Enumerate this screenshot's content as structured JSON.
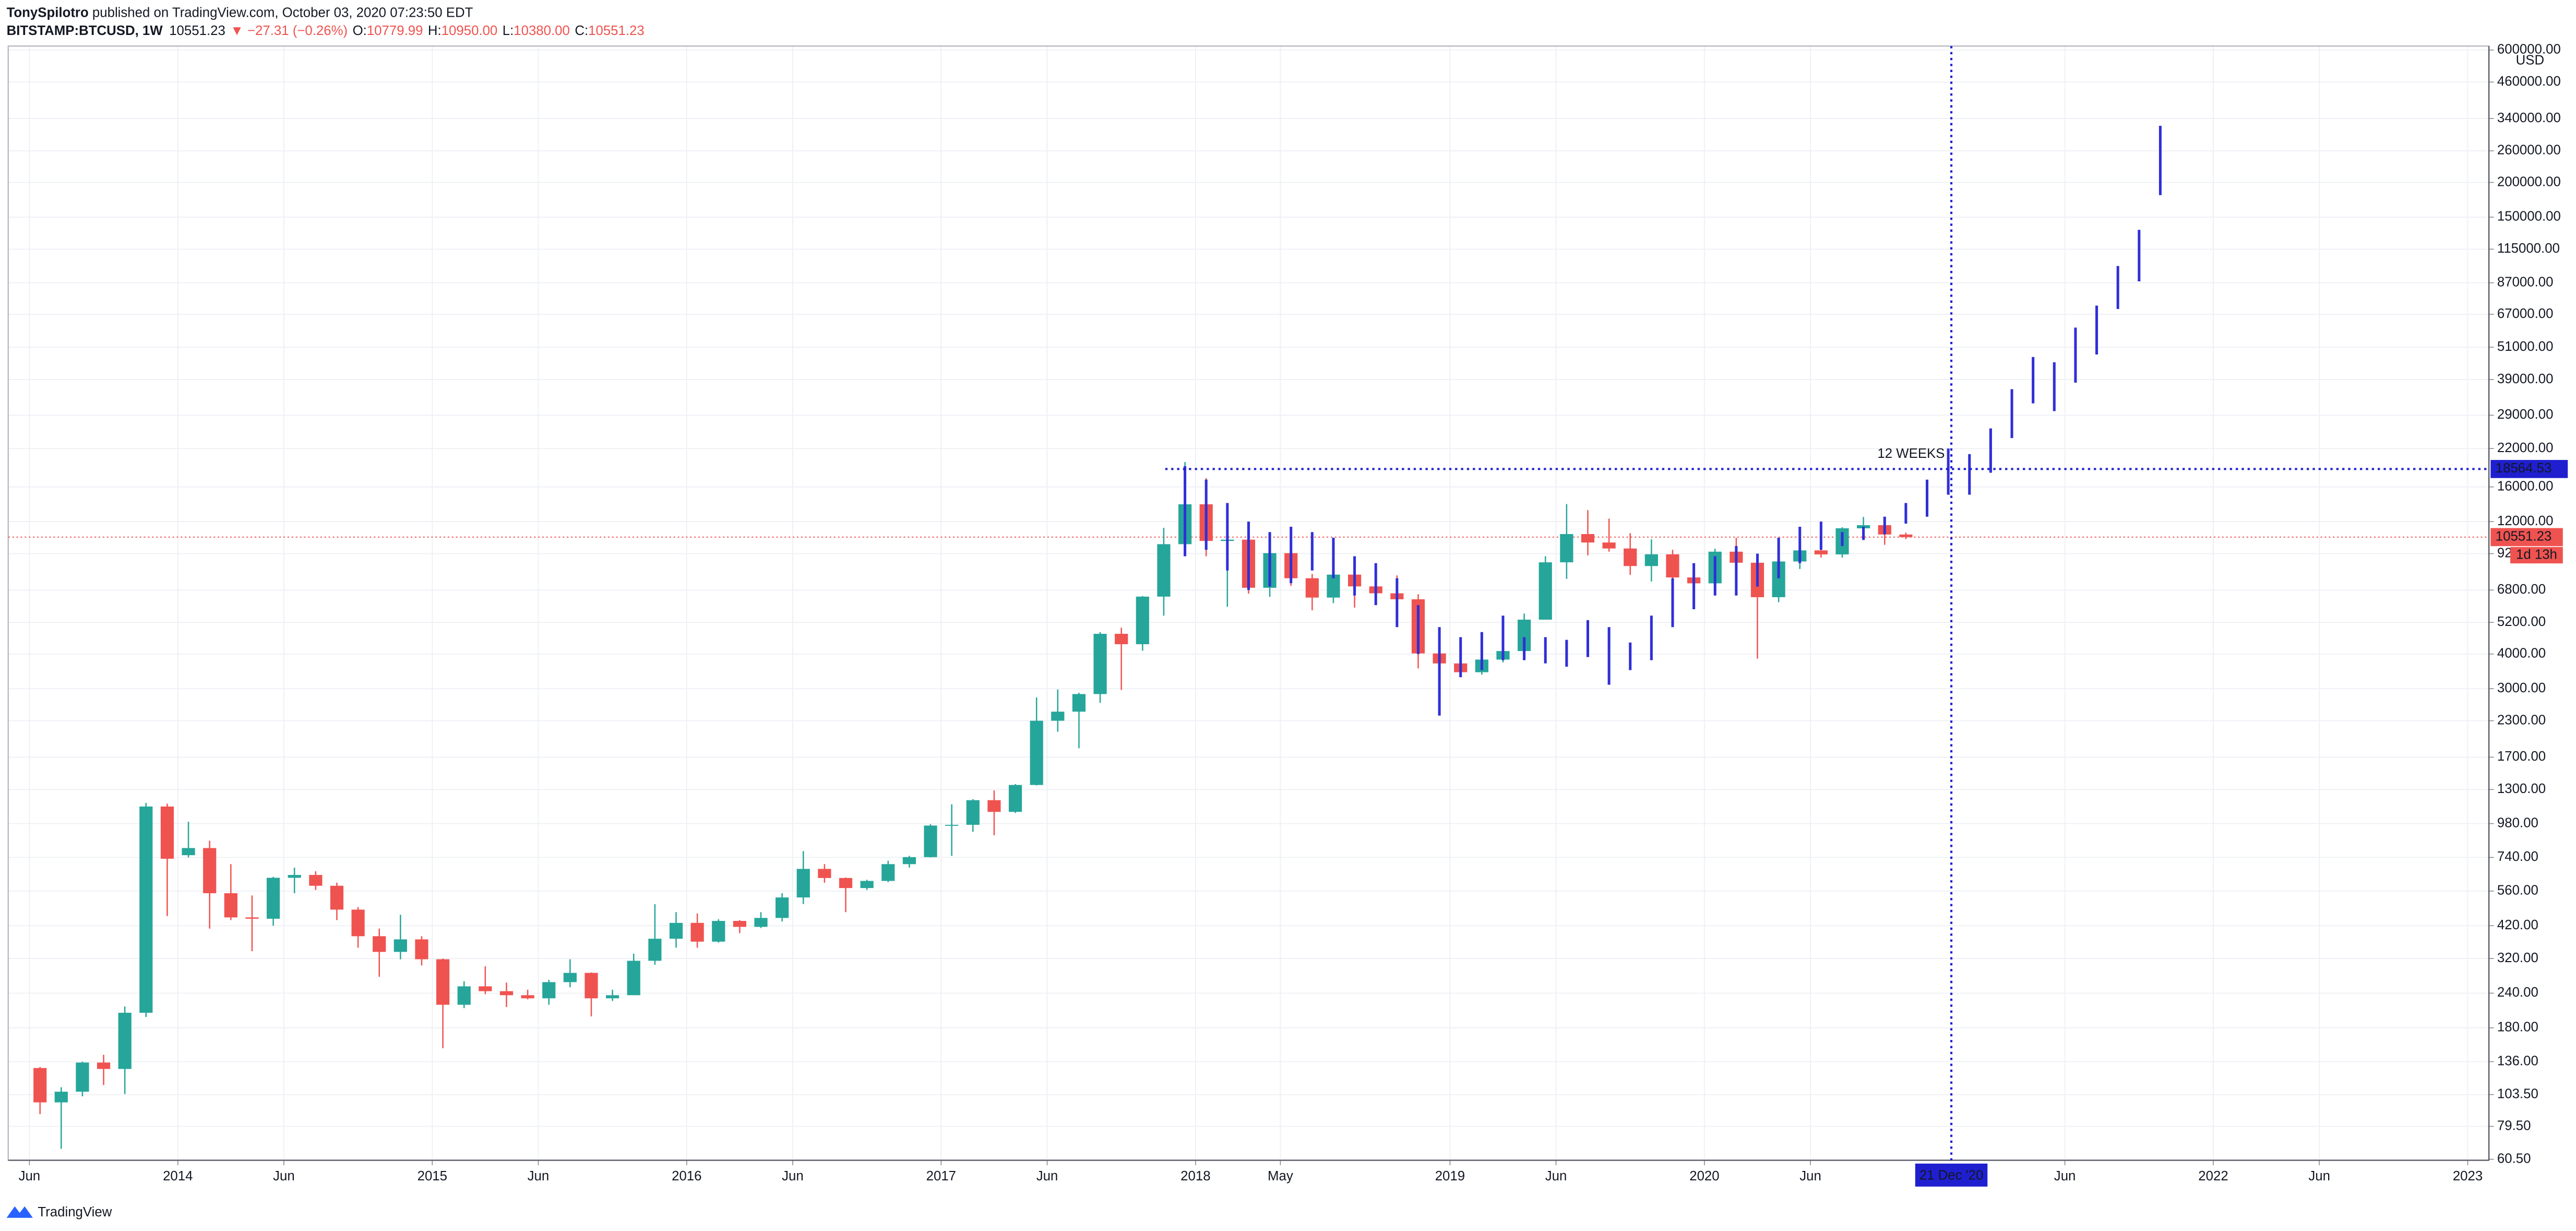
{
  "header": {
    "author": "TonySpilotro",
    "published": "published on TradingView.com, October 03, 2020 07:23:50 EDT",
    "symbol": "BITSTAMP:BTCUSD, 1W",
    "last": "10551.23",
    "change": "▼ −27.31 (−0.26%)",
    "ohlc": [
      {
        "key": "O:",
        "value": "10779.99"
      },
      {
        "key": "H:",
        "value": "10950.00"
      },
      {
        "key": "L:",
        "value": "10380.00"
      },
      {
        "key": "C:",
        "value": "10551.23"
      }
    ]
  },
  "footer": {
    "brand": "TradingView"
  },
  "chart_data": {
    "type": "candlestick",
    "log_scale": true,
    "grid": true,
    "up_color": "#26a69a",
    "down_color": "#ef5350",
    "axis_unit": "USD",
    "x": [
      "2013-06",
      "2013-07",
      "2013-08",
      "2013-09",
      "2013-10",
      "2013-11",
      "2013-12",
      "2014-01",
      "2014-02",
      "2014-03",
      "2014-04",
      "2014-05",
      "2014-06",
      "2014-07",
      "2014-08",
      "2014-09",
      "2014-10",
      "2014-11",
      "2014-12",
      "2015-01",
      "2015-02",
      "2015-03",
      "2015-04",
      "2015-05",
      "2015-06",
      "2015-07",
      "2015-08",
      "2015-09",
      "2015-10",
      "2015-11",
      "2015-12",
      "2016-01",
      "2016-02",
      "2016-03",
      "2016-04",
      "2016-05",
      "2016-06",
      "2016-07",
      "2016-08",
      "2016-09",
      "2016-10",
      "2016-11",
      "2016-12",
      "2017-01",
      "2017-02",
      "2017-03",
      "2017-04",
      "2017-05",
      "2017-06",
      "2017-07",
      "2017-08",
      "2017-09",
      "2017-10",
      "2017-11",
      "2017-12",
      "2018-01",
      "2018-02",
      "2018-03",
      "2018-04",
      "2018-05",
      "2018-06",
      "2018-07",
      "2018-08",
      "2018-09",
      "2018-10",
      "2018-11",
      "2018-12",
      "2019-01",
      "2019-02",
      "2019-03",
      "2019-04",
      "2019-05",
      "2019-06",
      "2019-07",
      "2019-08",
      "2019-09",
      "2019-10",
      "2019-11",
      "2019-12",
      "2020-01",
      "2020-02",
      "2020-03",
      "2020-04",
      "2020-05",
      "2020-06",
      "2020-07",
      "2020-08",
      "2020-09",
      "2020-10"
    ],
    "open": [
      129,
      97,
      106,
      135,
      128,
      204,
      1129,
      754,
      800,
      550,
      450,
      445,
      625,
      640,
      585,
      480,
      385,
      338,
      375,
      318,
      218,
      254,
      244,
      236,
      230,
      263,
      284,
      230,
      236,
      314,
      377,
      430,
      368,
      437,
      416,
      448,
      531,
      673,
      624,
      574,
      609,
      700,
      742,
      964,
      970,
      1190,
      1080,
      1350,
      2300,
      2480,
      2870,
      4730,
      4340,
      6440,
      9950,
      13850,
      10220,
      10330,
      6930,
      9240,
      7500,
      6390,
      7730,
      7010,
      6620,
      6300,
      4020,
      3700,
      3440,
      3820,
      4100,
      5320,
      8560,
      10820,
      10090,
      9600,
      8300,
      9150,
      7550,
      7190,
      9350,
      8530,
      6410,
      8620,
      9450,
      9140,
      11350,
      11650,
      10780
    ],
    "high": [
      130,
      110,
      136,
      144,
      215,
      1163,
      1156,
      995,
      850,
      700,
      540,
      630,
      680,
      660,
      600,
      490,
      410,
      460,
      385,
      320,
      265,
      300,
      262,
      247,
      268,
      318,
      285,
      247,
      333,
      502,
      470,
      465,
      443,
      440,
      470,
      550,
      780,
      700,
      627,
      615,
      720,
      750,
      975,
      1150,
      1200,
      1290,
      1360,
      2790,
      2980,
      2900,
      4800,
      4980,
      6470,
      11400,
      19666,
      17200,
      11780,
      11700,
      9760,
      9990,
      7770,
      8500,
      7750,
      7410,
      7680,
      6570,
      4310,
      4100,
      4200,
      4130,
      5600,
      9000,
      13880,
      13200,
      12300,
      10900,
      10350,
      9500,
      7750,
      9580,
      10500,
      9190,
      9460,
      10080,
      10380,
      11450,
      12470,
      12090,
      10950
    ],
    "low": [
      88,
      66,
      102,
      112,
      104,
      197,
      455,
      740,
      410,
      440,
      340,
      420,
      550,
      565,
      440,
      350,
      275,
      318,
      302,
      152,
      212,
      238,
      214,
      228,
      218,
      252,
      198,
      225,
      236,
      304,
      350,
      350,
      365,
      395,
      412,
      435,
      503,
      600,
      470,
      565,
      603,
      680,
      740,
      750,
      915,
      890,
      1070,
      1345,
      2100,
      1830,
      2670,
      2970,
      4110,
      5500,
      9400,
      9000,
      5920,
      6600,
      6430,
      7050,
      5750,
      6100,
      5880,
      6100,
      6200,
      3550,
      3120,
      3350,
      3370,
      3730,
      4050,
      5330,
      7460,
      9070,
      9350,
      7710,
      7300,
      6530,
      6430,
      6880,
      8450,
      3850,
      6150,
      8100,
      8900,
      8900,
      10520,
      9900,
      10380
    ],
    "close": [
      97,
      106,
      135,
      128,
      204,
      1129,
      732,
      800,
      550,
      450,
      445,
      625,
      640,
      585,
      480,
      385,
      338,
      375,
      318,
      218,
      254,
      244,
      236,
      230,
      263,
      284,
      230,
      236,
      314,
      377,
      430,
      368,
      437,
      416,
      448,
      531,
      673,
      624,
      574,
      609,
      700,
      742,
      964,
      970,
      1190,
      1080,
      1350,
      2300,
      2480,
      2870,
      4730,
      4340,
      6440,
      9950,
      13850,
      10220,
      10330,
      6930,
      9240,
      7500,
      6390,
      7730,
      7010,
      6620,
      6300,
      4020,
      3700,
      3440,
      3820,
      4100,
      5320,
      8560,
      10820,
      10090,
      9600,
      8300,
      9150,
      7550,
      7190,
      9350,
      8530,
      6410,
      8620,
      9450,
      9140,
      11350,
      11650,
      10780,
      10551.23
    ],
    "projection": {
      "color": "#2f2fd8",
      "x": [
        "2017-12",
        "2018-01",
        "2018-02",
        "2018-03",
        "2018-04",
        "2018-05",
        "2018-06",
        "2018-07",
        "2018-08",
        "2018-09",
        "2018-10",
        "2018-11",
        "2018-12",
        "2019-01",
        "2019-02",
        "2019-03",
        "2019-04",
        "2019-05",
        "2019-06",
        "2019-07",
        "2019-08",
        "2019-09",
        "2019-10",
        "2019-11",
        "2019-12",
        "2020-01",
        "2020-02",
        "2020-03",
        "2020-04",
        "2020-05",
        "2020-06",
        "2020-07",
        "2020-08",
        "2020-09",
        "2020-10",
        "2020-11",
        "2020-12",
        "2021-01",
        "2021-02",
        "2021-03",
        "2021-04",
        "2021-05",
        "2021-06",
        "2021-07",
        "2021-08",
        "2021-09",
        "2021-10"
      ],
      "high": [
        19000,
        17000,
        14000,
        12000,
        11000,
        11500,
        11000,
        10500,
        9000,
        8500,
        7500,
        6000,
        5000,
        4600,
        4800,
        5500,
        4600,
        4600,
        4500,
        5300,
        5000,
        4400,
        5500,
        7500,
        8500,
        9000,
        9800,
        9200,
        10500,
        11500,
        12000,
        11000,
        11500,
        12500,
        14000,
        17000,
        22000,
        21000,
        26000,
        36000,
        47000,
        45000,
        60000,
        72000,
        100000,
        135000,
        320000
      ],
      "low": [
        9000,
        9500,
        8000,
        6800,
        7000,
        7200,
        8000,
        7500,
        6500,
        6000,
        5000,
        4000,
        2400,
        3300,
        3500,
        3800,
        3800,
        3700,
        3600,
        3900,
        3100,
        3500,
        3800,
        5000,
        5800,
        6500,
        6500,
        7000,
        7500,
        8500,
        9500,
        9800,
        10300,
        10800,
        11800,
        12500,
        15000,
        15000,
        18000,
        24000,
        32000,
        30000,
        38000,
        48000,
        70000,
        88000,
        180000
      ]
    },
    "xlim": [
      "2013-05",
      "2023-02"
    ],
    "xticks": [
      {
        "value": "2013-06",
        "label": "Jun"
      },
      {
        "value": "2014-01",
        "label": "2014"
      },
      {
        "value": "2014-06",
        "label": "Jun"
      },
      {
        "value": "2015-01",
        "label": "2015"
      },
      {
        "value": "2015-06",
        "label": "Jun"
      },
      {
        "value": "2016-01",
        "label": "2016"
      },
      {
        "value": "2016-06",
        "label": "Jun"
      },
      {
        "value": "2017-01",
        "label": "2017"
      },
      {
        "value": "2017-06",
        "label": "Jun"
      },
      {
        "value": "2018-01",
        "label": "2018"
      },
      {
        "value": "2018-05",
        "label": "May"
      },
      {
        "value": "2019-01",
        "label": "2019"
      },
      {
        "value": "2019-06",
        "label": "Jun"
      },
      {
        "value": "2020-01",
        "label": "2020"
      },
      {
        "value": "2020-06",
        "label": "Jun"
      },
      {
        "value": "2021-06",
        "label": "Jun"
      },
      {
        "value": "2022-01",
        "label": "2022"
      },
      {
        "value": "2022-06",
        "label": "Jun"
      },
      {
        "value": "2023-01",
        "label": "2023"
      }
    ],
    "ylim": [
      60,
      620000
    ],
    "yticks": [
      {
        "value": 600000,
        "label": "600000.00"
      },
      {
        "value": 460000,
        "label": "460000.00"
      },
      {
        "value": 340000,
        "label": "340000.00"
      },
      {
        "value": 260000,
        "label": "260000.00"
      },
      {
        "value": 200000,
        "label": "200000.00"
      },
      {
        "value": 150000,
        "label": "150000.00"
      },
      {
        "value": 115000,
        "label": "115000.00"
      },
      {
        "value": 87000,
        "label": "87000.00"
      },
      {
        "value": 67000,
        "label": "67000.00"
      },
      {
        "value": 51000,
        "label": "51000.00"
      },
      {
        "value": 39000,
        "label": "39000.00"
      },
      {
        "value": 29000,
        "label": "29000.00"
      },
      {
        "value": 22000,
        "label": "22000.00"
      },
      {
        "value": 16000,
        "label": "16000.00"
      },
      {
        "value": 12000,
        "label": "12000.00"
      },
      {
        "value": 9200,
        "label": "9200.00"
      },
      {
        "value": 6800,
        "label": "6800.00"
      },
      {
        "value": 5200,
        "label": "5200.00"
      },
      {
        "value": 4000,
        "label": "4000.00"
      },
      {
        "value": 3000,
        "label": "3000.00"
      },
      {
        "value": 2300,
        "label": "2300.00"
      },
      {
        "value": 1700,
        "label": "1700.00"
      },
      {
        "value": 1300,
        "label": "1300.00"
      },
      {
        "value": 980,
        "label": "980.00"
      },
      {
        "value": 740,
        "label": "740.00"
      },
      {
        "value": 560,
        "label": "560.00"
      },
      {
        "value": 420,
        "label": "420.00"
      },
      {
        "value": 320,
        "label": "320.00"
      },
      {
        "value": 240,
        "label": "240.00"
      },
      {
        "value": 180,
        "label": "180.00"
      },
      {
        "value": 136,
        "label": "136.00"
      },
      {
        "value": 103.5,
        "label": "103.50"
      },
      {
        "value": 79.5,
        "label": "79.50"
      },
      {
        "value": 60.5,
        "label": "60.50"
      }
    ],
    "level_line": {
      "value": 18564.53,
      "color": "#1f1fd0"
    },
    "last_price": {
      "value": 10551.23,
      "countdown": "1d 13h",
      "color": "#ef5350"
    },
    "crosshair": {
      "x": "2020-12-21",
      "label": "21 Dec '20",
      "color": "#1f1fd0"
    },
    "annotation": {
      "text": "12 WEEKS",
      "color": "#1565c0"
    }
  }
}
